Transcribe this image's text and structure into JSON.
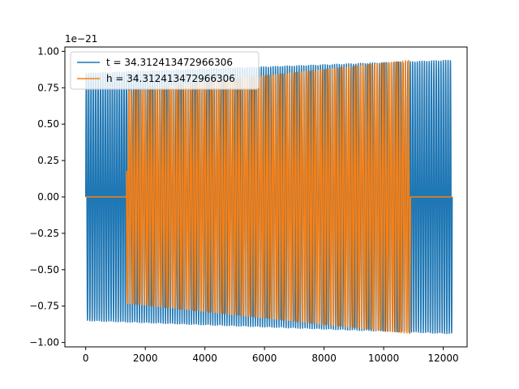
{
  "chart_data": {
    "type": "line",
    "title": "",
    "xlabel": "",
    "ylabel": "",
    "y_offset_label": "1e−21",
    "xlim": [
      -700,
      12800
    ],
    "ylim": [
      -1.03,
      1.03
    ],
    "x_ticks": [
      0,
      2000,
      4000,
      6000,
      8000,
      10000,
      12000
    ],
    "x_tick_labels": [
      "0",
      "2000",
      "4000",
      "6000",
      "8000",
      "10000",
      "12000"
    ],
    "y_ticks": [
      -1.0,
      -0.75,
      -0.5,
      -0.25,
      0.0,
      0.25,
      0.5,
      0.75,
      1.0
    ],
    "y_tick_labels": [
      "−1.00",
      "−0.75",
      "−0.50",
      "−0.25",
      "0.00",
      "0.25",
      "0.50",
      "0.75",
      "1.00"
    ],
    "grid": false,
    "legend_position": "top-left",
    "series": [
      {
        "name": "t = 34.312413472966306",
        "color": "#1f77b4",
        "style": "oscillation",
        "x_start": 0,
        "x_end": 12300,
        "amplitude_start": 0.85,
        "amplitude_end": 0.94,
        "approx_cycles": 155,
        "zero_segments": []
      },
      {
        "name": "h = 34.312413472966306",
        "color": "#ff7f0e",
        "style": "oscillation",
        "x_start": 0,
        "x_end": 10900,
        "amplitude_start": 0.7,
        "amplitude_end": 0.94,
        "approx_cycles": 115,
        "zero_segments": [
          [
            0,
            1370
          ],
          [
            10900,
            12300
          ]
        ]
      }
    ]
  }
}
